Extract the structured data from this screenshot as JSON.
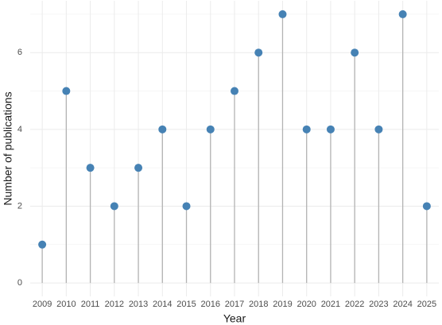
{
  "chart_data": {
    "type": "lollipop",
    "x": [
      2009,
      2010,
      2011,
      2012,
      2013,
      2014,
      2015,
      2016,
      2017,
      2018,
      2019,
      2020,
      2021,
      2022,
      2023,
      2024,
      2025
    ],
    "values": [
      1,
      5,
      3,
      2,
      3,
      4,
      2,
      4,
      5,
      6,
      7,
      4,
      4,
      6,
      4,
      7,
      2
    ],
    "color": "#4682b4",
    "stem_color": "#b3b3b3",
    "xlabel": "Year",
    "ylabel": "Number of publications",
    "xlim": [
      2008.5,
      2025.5
    ],
    "xticks": [
      2009,
      2010,
      2011,
      2012,
      2013,
      2014,
      2015,
      2016,
      2017,
      2018,
      2019,
      2020,
      2021,
      2022,
      2023,
      2024,
      2025
    ],
    "ylim": [
      -0.35,
      7.35
    ],
    "yticks": [
      0,
      2,
      4,
      6
    ],
    "grid": true
  }
}
